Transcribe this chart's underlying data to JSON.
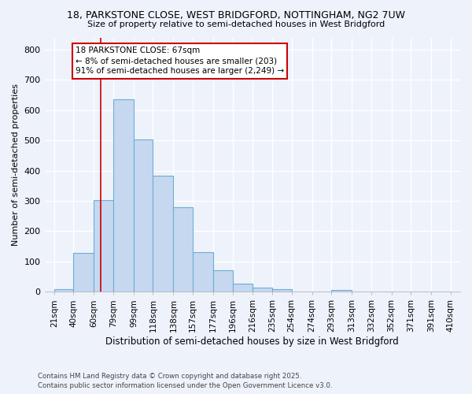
{
  "title1": "18, PARKSTONE CLOSE, WEST BRIDGFORD, NOTTINGHAM, NG2 7UW",
  "title2": "Size of property relative to semi-detached houses in West Bridgford",
  "xlabel": "Distribution of semi-detached houses by size in West Bridgford",
  "ylabel": "Number of semi-detached properties",
  "bar_edges": [
    21,
    40,
    60,
    79,
    99,
    118,
    138,
    157,
    177,
    196,
    216,
    235,
    254,
    274,
    293,
    313,
    332,
    352,
    371,
    391,
    410
  ],
  "bar_heights": [
    8,
    128,
    303,
    635,
    503,
    383,
    278,
    130,
    71,
    28,
    13,
    8,
    0,
    0,
    6,
    0,
    0,
    0,
    0,
    0
  ],
  "property_size": 67,
  "bar_color": "#c5d8f0",
  "bar_edge_color": "#6baed6",
  "red_line_color": "#cc0000",
  "annotation_text": "18 PARKSTONE CLOSE: 67sqm\n← 8% of semi-detached houses are smaller (203)\n91% of semi-detached houses are larger (2,249) →",
  "annotation_box_color": "#ffffff",
  "annotation_border_color": "#cc0000",
  "background_color": "#eef2fb",
  "grid_color": "#ffffff",
  "footer_line1": "Contains HM Land Registry data © Crown copyright and database right 2025.",
  "footer_line2": "Contains public sector information licensed under the Open Government Licence v3.0.",
  "ylim": [
    0,
    840
  ],
  "yticks": [
    0,
    100,
    200,
    300,
    400,
    500,
    600,
    700,
    800
  ],
  "tick_labels": [
    "21sqm",
    "40sqm",
    "60sqm",
    "79sqm",
    "99sqm",
    "118sqm",
    "138sqm",
    "157sqm",
    "177sqm",
    "196sqm",
    "216sqm",
    "235sqm",
    "254sqm",
    "274sqm",
    "293sqm",
    "313sqm",
    "332sqm",
    "352sqm",
    "371sqm",
    "391sqm",
    "410sqm"
  ]
}
